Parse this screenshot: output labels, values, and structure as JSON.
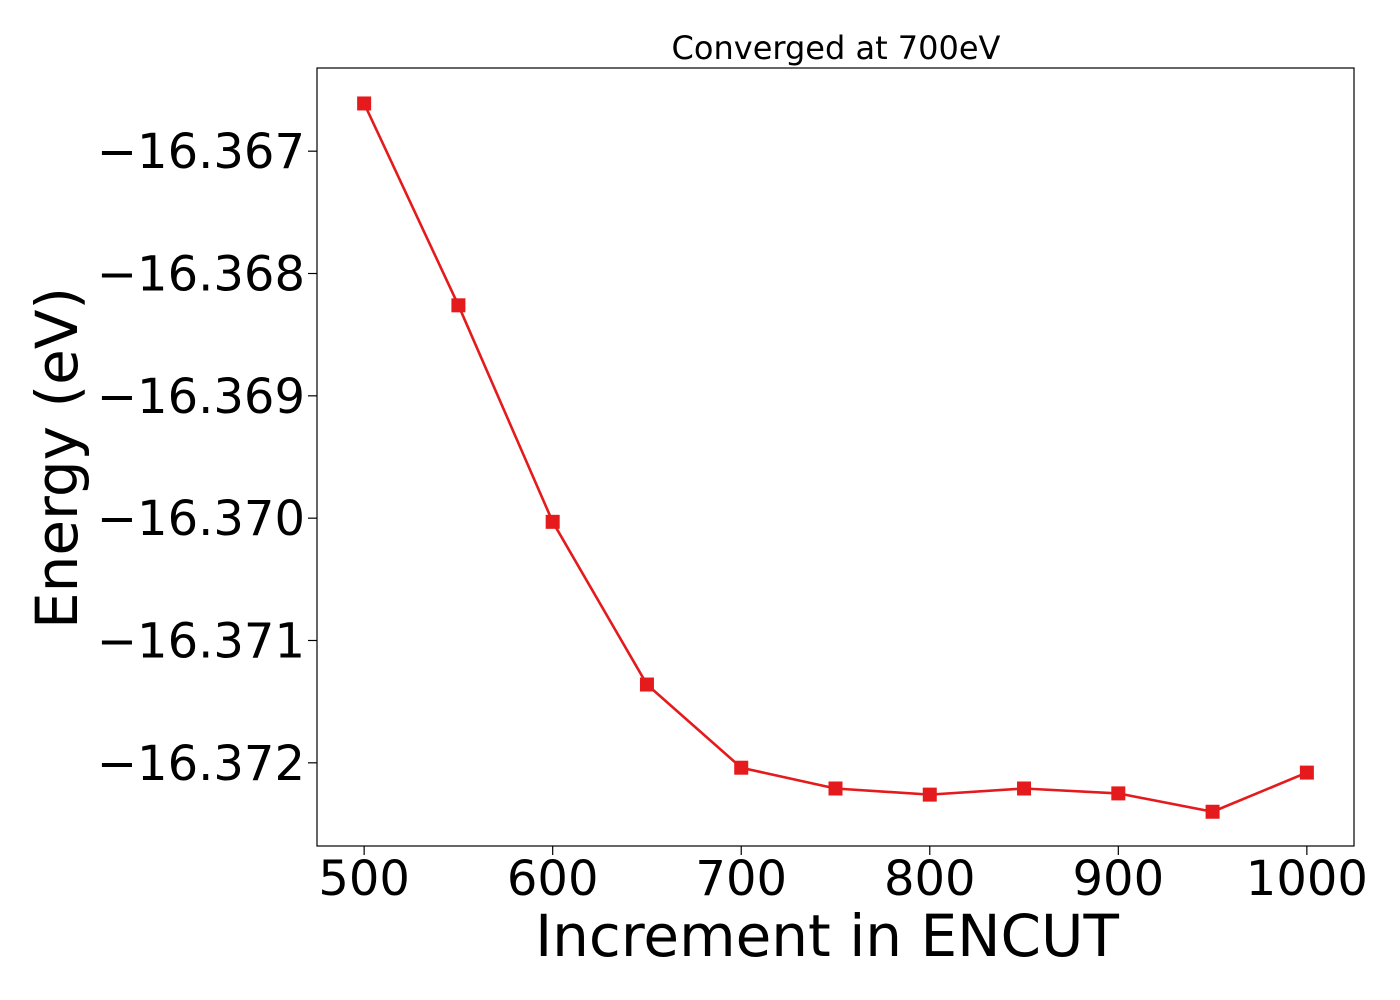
{
  "chart_data": {
    "type": "line",
    "title": "Converged at 700eV",
    "xlabel": "Increment in ENCUT",
    "ylabel": "Energy (eV)",
    "x": [
      500,
      550,
      600,
      650,
      700,
      750,
      800,
      850,
      900,
      950,
      1000
    ],
    "series": [
      {
        "values": [
          -16.36661,
          -16.36826,
          -16.37003,
          -16.37136,
          -16.37204,
          -16.37221,
          -16.37226,
          -16.37221,
          -16.37225,
          -16.3724,
          -16.37208
        ],
        "color": "#e41a1c",
        "marker": "square"
      }
    ],
    "xticks": [
      "500",
      "600",
      "700",
      "800",
      "900",
      "1000"
    ],
    "xtick_values": [
      500,
      600,
      700,
      800,
      900,
      1000
    ],
    "yticks": [
      "−16.367",
      "−16.368",
      "−16.369",
      "−16.370",
      "−16.371",
      "−16.372"
    ],
    "ytick_values": [
      -16.367,
      -16.368,
      -16.369,
      -16.37,
      -16.371,
      -16.372
    ],
    "xlim": [
      475,
      1025
    ],
    "ylim": [
      -16.37268,
      -16.36632
    ],
    "grid": false,
    "legend": false
  }
}
